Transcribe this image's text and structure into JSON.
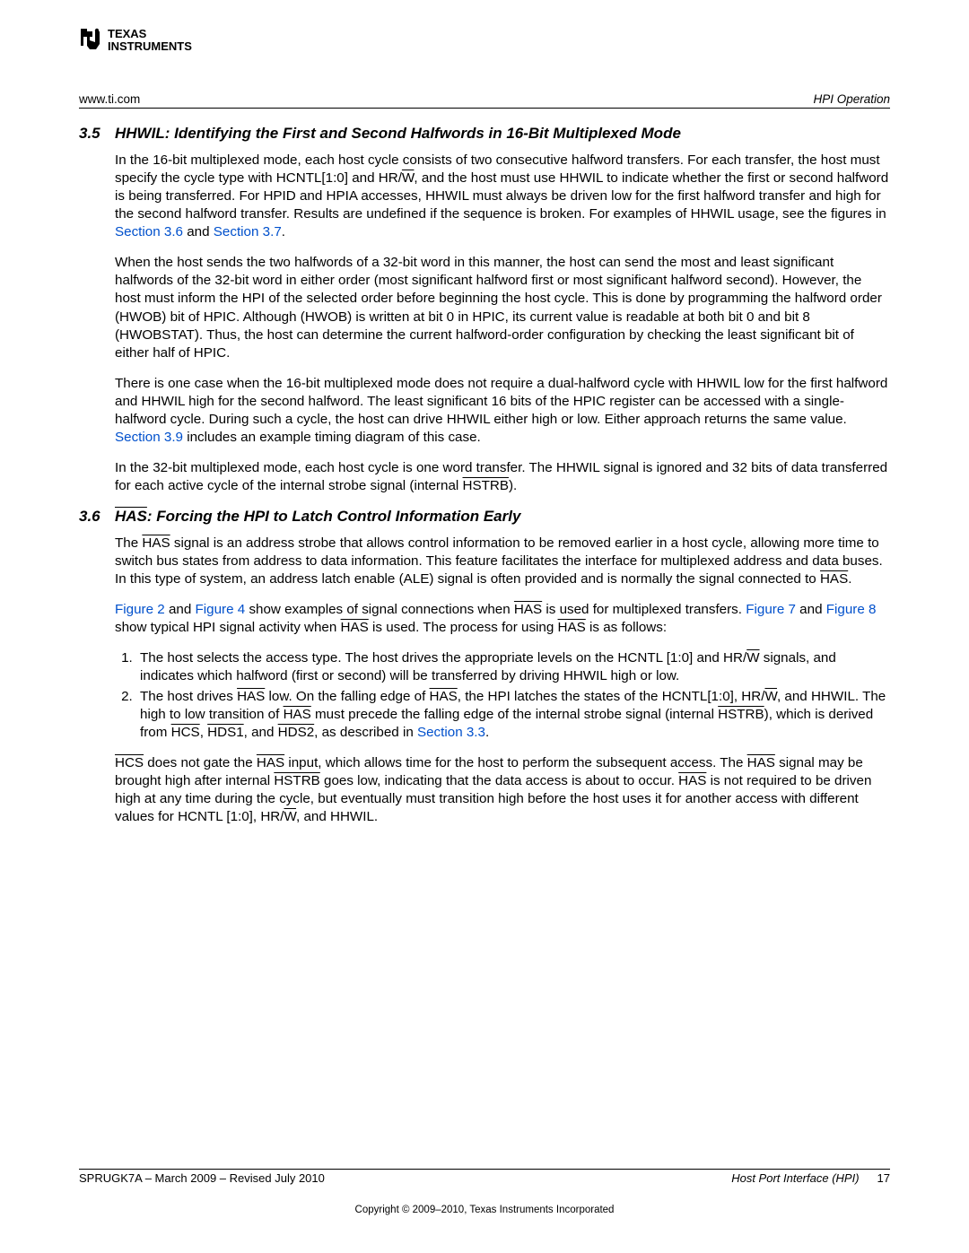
{
  "header": {
    "left": "www.ti.com",
    "right": "HPI Operation"
  },
  "sections": [
    {
      "num": "3.5",
      "title": "HHWIL: Identifying the First and Second Halfwords in 16-Bit Multiplexed Mode",
      "paras": [
        [
          {
            "t": "In the 16-bit multiplexed mode, each host cycle consists of two consecutive halfword transfers. For each transfer, the host must specify the cycle type with HCNTL[1:0] and HR/"
          },
          {
            "t": "W",
            "ovl": true
          },
          {
            "t": ", and the host must use HHWIL to indicate whether the first or second halfword is being transferred. For HPID and HPIA accesses, HHWIL must always be driven low for the first halfword transfer and high for the second halfword transfer. Results are undefined if the sequence is broken. For examples of HHWIL usage, see the figures in "
          },
          {
            "t": "Section 3.6",
            "lnk": true
          },
          {
            "t": " and "
          },
          {
            "t": "Section 3.7",
            "lnk": true
          },
          {
            "t": "."
          }
        ],
        [
          {
            "t": "When the host sends the two halfwords of a 32-bit word in this manner, the host can send the most and least significant halfwords of the 32-bit word in either order (most significant halfword first or most significant halfword second). However, the host must inform the HPI of the selected order before beginning the host cycle. This is done by programming the halfword order (HWOB) bit of HPIC. Although (HWOB) is written at bit 0 in HPIC, its current value is readable at both bit 0 and bit 8 (HWOBSTAT). Thus, the host can determine the current halfword-order configuration by checking the least significant bit of either half of HPIC."
          }
        ],
        [
          {
            "t": "There is one case when the 16-bit multiplexed mode does not require a dual-halfword cycle with HHWIL low for the first halfword and HHWIL high for the second halfword. The least significant 16 bits of the HPIC register can be accessed with a single-halfword cycle. During such a cycle, the host can drive HHWIL either high or low. Either approach returns the same value. "
          },
          {
            "t": "Section 3.9",
            "lnk": true
          },
          {
            "t": " includes an example timing diagram of this case."
          }
        ],
        [
          {
            "t": "In the 32-bit multiplexed mode, each host cycle is one word transfer. The HHWIL signal is ignored and 32 bits of data transferred for each active cycle of the internal strobe signal (internal "
          },
          {
            "t": "HSTRB",
            "ovl": true
          },
          {
            "t": ")."
          }
        ]
      ]
    },
    {
      "num": "3.6",
      "title_runs": [
        {
          "t": "HAS",
          "ovl": true
        },
        {
          "t": ": Forcing the HPI to Latch Control Information Early"
        }
      ],
      "paras": [
        [
          {
            "t": "The "
          },
          {
            "t": "HAS",
            "ovl": true
          },
          {
            "t": " signal is an address strobe that allows control information to be removed earlier in a host cycle, allowing more time to switch bus states from address to data information. This feature facilitates the interface for multiplexed address and data buses. In this type of system, an address latch enable (ALE) signal is often provided and is normally the signal connected to "
          },
          {
            "t": "HAS",
            "ovl": true
          },
          {
            "t": "."
          }
        ],
        [
          {
            "t": "Figure 2",
            "lnk": true
          },
          {
            "t": " and "
          },
          {
            "t": "Figure 4",
            "lnk": true
          },
          {
            "t": " show examples of signal connections when "
          },
          {
            "t": "HAS",
            "ovl": true
          },
          {
            "t": " is used for multiplexed transfers. "
          },
          {
            "t": "Figure 7",
            "lnk": true
          },
          {
            "t": " and "
          },
          {
            "t": "Figure 8",
            "lnk": true
          },
          {
            "t": " show typical HPI signal activity when "
          },
          {
            "t": "HAS",
            "ovl": true
          },
          {
            "t": " is used. The process for using "
          },
          {
            "t": "HAS",
            "ovl": true
          },
          {
            "t": " is as follows:"
          }
        ]
      ],
      "list": [
        [
          {
            "t": "The host selects the access type. The host drives the appropriate levels on the HCNTL [1:0] and HR/"
          },
          {
            "t": "W",
            "ovl": true
          },
          {
            "t": " signals, and indicates which halfword (first or second) will be transferred by driving HHWIL high or low."
          }
        ],
        [
          {
            "t": "The host drives "
          },
          {
            "t": "HAS",
            "ovl": true
          },
          {
            "t": " low. On the falling edge of "
          },
          {
            "t": "HAS",
            "ovl": true
          },
          {
            "t": ", the HPI latches the states of the HCNTL[1:0], HR/"
          },
          {
            "t": "W",
            "ovl": true
          },
          {
            "t": ", and HHWIL. The high to low transition of "
          },
          {
            "t": "HAS",
            "ovl": true
          },
          {
            "t": " must precede the falling edge of the internal strobe signal (internal "
          },
          {
            "t": "HSTRB",
            "ovl": true
          },
          {
            "t": "), which is derived from "
          },
          {
            "t": "HCS",
            "ovl": true
          },
          {
            "t": ", "
          },
          {
            "t": "HDS1",
            "ovl": true
          },
          {
            "t": ", and "
          },
          {
            "t": "HDS2",
            "ovl": true
          },
          {
            "t": ", as described in "
          },
          {
            "t": "Section 3.3",
            "lnk": true
          },
          {
            "t": "."
          }
        ]
      ],
      "after_list": [
        [
          {
            "t": "HCS",
            "ovl": true
          },
          {
            "t": " does not gate the "
          },
          {
            "t": "HAS",
            "ovl": true
          },
          {
            "t": " input, which allows time for the host to perform the subsequent access. The "
          },
          {
            "t": "HAS",
            "ovl": true
          },
          {
            "t": " signal may be brought high after internal "
          },
          {
            "t": "HSTRB",
            "ovl": true
          },
          {
            "t": " goes low, indicating that the data access is about to occur. "
          },
          {
            "t": "HAS",
            "ovl": true
          },
          {
            "t": " is not required to be driven high at any time during the cycle, but eventually must transition high before the host uses it for another access with different values for HCNTL [1:0], HR/"
          },
          {
            "t": "W",
            "ovl": true
          },
          {
            "t": ", and HHWIL."
          }
        ]
      ]
    }
  ],
  "footer": {
    "left": "SPRUGK7A – March 2009 – Revised July 2010",
    "right_title": "Host Port Interface (HPI)",
    "page": "17",
    "copyright": "Copyright © 2009–2010, Texas Instruments Incorporated"
  },
  "colors": {
    "link": "#0050cc",
    "text": "#000000",
    "bg": "#ffffff"
  }
}
